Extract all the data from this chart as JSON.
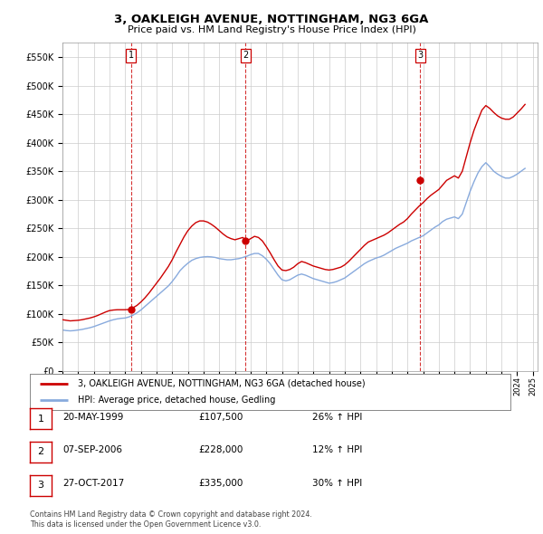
{
  "title": "3, OAKLEIGH AVENUE, NOTTINGHAM, NG3 6GA",
  "subtitle": "Price paid vs. HM Land Registry's House Price Index (HPI)",
  "ylabel_ticks": [
    "£0",
    "£50K",
    "£100K",
    "£150K",
    "£200K",
    "£250K",
    "£300K",
    "£350K",
    "£400K",
    "£450K",
    "£500K",
    "£550K"
  ],
  "ytick_values": [
    0,
    50000,
    100000,
    150000,
    200000,
    250000,
    300000,
    350000,
    400000,
    450000,
    500000,
    550000
  ],
  "ylim": [
    0,
    575000
  ],
  "xlim_start": 1995.0,
  "xlim_end": 2025.3,
  "sale_dates": [
    1999.38,
    2006.68,
    2017.82
  ],
  "sale_prices": [
    107500,
    228000,
    335000
  ],
  "sale_labels": [
    "1",
    "2",
    "3"
  ],
  "sale_info": [
    {
      "label": "1",
      "date": "20-MAY-1999",
      "price": "£107,500",
      "hpi": "26% ↑ HPI"
    },
    {
      "label": "2",
      "date": "07-SEP-2006",
      "price": "£228,000",
      "hpi": "12% ↑ HPI"
    },
    {
      "label": "3",
      "date": "27-OCT-2017",
      "price": "£335,000",
      "hpi": "30% ↑ HPI"
    }
  ],
  "legend_line1": "3, OAKLEIGH AVENUE, NOTTINGHAM, NG3 6GA (detached house)",
  "legend_line2": "HPI: Average price, detached house, Gedling",
  "footer1": "Contains HM Land Registry data © Crown copyright and database right 2024.",
  "footer2": "This data is licensed under the Open Government Licence v3.0.",
  "line_color_red": "#cc0000",
  "line_color_blue": "#88aadd",
  "background_color": "#ffffff",
  "grid_color": "#cccccc",
  "hpi_data_x": [
    1995.0,
    1995.25,
    1995.5,
    1995.75,
    1996.0,
    1996.25,
    1996.5,
    1996.75,
    1997.0,
    1997.25,
    1997.5,
    1997.75,
    1998.0,
    1998.25,
    1998.5,
    1998.75,
    1999.0,
    1999.25,
    1999.5,
    1999.75,
    2000.0,
    2000.25,
    2000.5,
    2000.75,
    2001.0,
    2001.25,
    2001.5,
    2001.75,
    2002.0,
    2002.25,
    2002.5,
    2002.75,
    2003.0,
    2003.25,
    2003.5,
    2003.75,
    2004.0,
    2004.25,
    2004.5,
    2004.75,
    2005.0,
    2005.25,
    2005.5,
    2005.75,
    2006.0,
    2006.25,
    2006.5,
    2006.75,
    2007.0,
    2007.25,
    2007.5,
    2007.75,
    2008.0,
    2008.25,
    2008.5,
    2008.75,
    2009.0,
    2009.25,
    2009.5,
    2009.75,
    2010.0,
    2010.25,
    2010.5,
    2010.75,
    2011.0,
    2011.25,
    2011.5,
    2011.75,
    2012.0,
    2012.25,
    2012.5,
    2012.75,
    2013.0,
    2013.25,
    2013.5,
    2013.75,
    2014.0,
    2014.25,
    2014.5,
    2014.75,
    2015.0,
    2015.25,
    2015.5,
    2015.75,
    2016.0,
    2016.25,
    2016.5,
    2016.75,
    2017.0,
    2017.25,
    2017.5,
    2017.75,
    2018.0,
    2018.25,
    2018.5,
    2018.75,
    2019.0,
    2019.25,
    2019.5,
    2019.75,
    2020.0,
    2020.25,
    2020.5,
    2020.75,
    2021.0,
    2021.25,
    2021.5,
    2021.75,
    2022.0,
    2022.25,
    2022.5,
    2022.75,
    2023.0,
    2023.25,
    2023.5,
    2023.75,
    2024.0,
    2024.25,
    2024.5
  ],
  "hpi_data_y": [
    72000,
    71000,
    70500,
    71000,
    72000,
    73000,
    74500,
    76000,
    78000,
    80500,
    83000,
    85500,
    88000,
    90000,
    91500,
    92500,
    93000,
    95000,
    98000,
    102000,
    107000,
    113000,
    119000,
    125000,
    131000,
    137000,
    143000,
    149000,
    157000,
    166000,
    176000,
    183000,
    189000,
    194000,
    197000,
    199000,
    200000,
    200500,
    200000,
    199000,
    197000,
    196000,
    195000,
    195000,
    196000,
    197000,
    199000,
    201000,
    204000,
    206000,
    206000,
    202000,
    196000,
    188000,
    178000,
    168000,
    160000,
    158000,
    160000,
    164000,
    168000,
    170000,
    168000,
    165000,
    162000,
    160000,
    158000,
    156000,
    154000,
    155000,
    157000,
    160000,
    163000,
    168000,
    173000,
    178000,
    183000,
    188000,
    192000,
    195000,
    198000,
    200000,
    203000,
    207000,
    211000,
    215000,
    218000,
    221000,
    224000,
    228000,
    231000,
    234000,
    237000,
    242000,
    247000,
    252000,
    256000,
    262000,
    266000,
    268000,
    270000,
    267000,
    275000,
    295000,
    315000,
    332000,
    347000,
    358000,
    365000,
    358000,
    350000,
    345000,
    341000,
    338000,
    338000,
    341000,
    345000,
    350000,
    355000
  ],
  "price_data_x": [
    1995.0,
    1995.25,
    1995.5,
    1995.75,
    1996.0,
    1996.25,
    1996.5,
    1996.75,
    1997.0,
    1997.25,
    1997.5,
    1997.75,
    1998.0,
    1998.25,
    1998.5,
    1998.75,
    1999.0,
    1999.25,
    1999.5,
    1999.75,
    2000.0,
    2000.25,
    2000.5,
    2000.75,
    2001.0,
    2001.25,
    2001.5,
    2001.75,
    2002.0,
    2002.25,
    2002.5,
    2002.75,
    2003.0,
    2003.25,
    2003.5,
    2003.75,
    2004.0,
    2004.25,
    2004.5,
    2004.75,
    2005.0,
    2005.25,
    2005.5,
    2005.75,
    2006.0,
    2006.25,
    2006.5,
    2006.75,
    2007.0,
    2007.25,
    2007.5,
    2007.75,
    2008.0,
    2008.25,
    2008.5,
    2008.75,
    2009.0,
    2009.25,
    2009.5,
    2009.75,
    2010.0,
    2010.25,
    2010.5,
    2010.75,
    2011.0,
    2011.25,
    2011.5,
    2011.75,
    2012.0,
    2012.25,
    2012.5,
    2012.75,
    2013.0,
    2013.25,
    2013.5,
    2013.75,
    2014.0,
    2014.25,
    2014.5,
    2014.75,
    2015.0,
    2015.25,
    2015.5,
    2015.75,
    2016.0,
    2016.25,
    2016.5,
    2016.75,
    2017.0,
    2017.25,
    2017.5,
    2017.75,
    2018.0,
    2018.25,
    2018.5,
    2018.75,
    2019.0,
    2019.25,
    2019.5,
    2019.75,
    2020.0,
    2020.25,
    2020.5,
    2020.75,
    2021.0,
    2021.25,
    2021.5,
    2021.75,
    2022.0,
    2022.25,
    2022.5,
    2022.75,
    2023.0,
    2023.25,
    2023.5,
    2023.75,
    2024.0,
    2024.25,
    2024.5
  ],
  "price_data_y": [
    90000,
    89000,
    88000,
    88500,
    89000,
    90000,
    91500,
    93000,
    95000,
    97500,
    100500,
    103500,
    106000,
    107000,
    107500,
    107500,
    107500,
    108000,
    111000,
    115000,
    121000,
    128000,
    136000,
    145000,
    154000,
    163000,
    173000,
    183000,
    195000,
    209000,
    222000,
    235000,
    246000,
    254000,
    260000,
    263000,
    263000,
    261000,
    257000,
    252000,
    246000,
    240000,
    235000,
    232000,
    230000,
    232000,
    234000,
    228000,
    232000,
    236000,
    234000,
    228000,
    218000,
    207000,
    195000,
    184000,
    177000,
    176000,
    178000,
    182000,
    188000,
    192000,
    190000,
    187000,
    184000,
    182000,
    180000,
    178000,
    177000,
    178000,
    180000,
    182000,
    186000,
    192000,
    199000,
    206000,
    213000,
    220000,
    226000,
    229000,
    232000,
    235000,
    238000,
    242000,
    247000,
    252000,
    257000,
    261000,
    267000,
    275000,
    282000,
    289000,
    295000,
    302000,
    308000,
    313000,
    318000,
    326000,
    334000,
    338000,
    342000,
    338000,
    350000,
    375000,
    400000,
    422000,
    440000,
    457000,
    465000,
    460000,
    453000,
    447000,
    443000,
    441000,
    441000,
    445000,
    452000,
    459000,
    467000
  ]
}
